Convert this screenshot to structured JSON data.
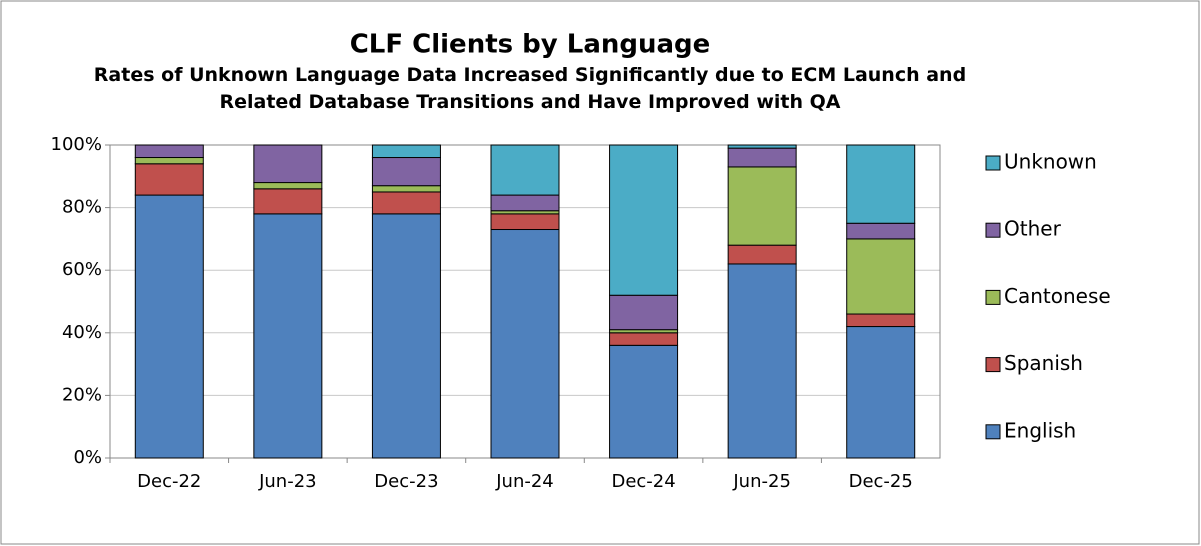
{
  "chart_data": {
    "type": "stacked_bar",
    "title": "CLF Clients by Language",
    "subtitle": "Rates of Unknown Language Data Increased Significantly due to ECM Launch and Related Database Transitions and Have Improved with QA",
    "categories": [
      "Dec-22",
      "Jun-23",
      "Dec-23",
      "Jun-24",
      "Dec-24",
      "Jun-25",
      "Dec-25"
    ],
    "series": [
      {
        "name": "English",
        "color": "#4f81bd",
        "values": [
          84,
          78,
          78,
          73,
          36,
          62,
          42
        ]
      },
      {
        "name": "Spanish",
        "color": "#c0504d",
        "values": [
          10,
          8,
          7,
          5,
          4,
          6,
          4
        ]
      },
      {
        "name": "Cantonese",
        "color": "#9bbb59",
        "values": [
          2,
          2,
          2,
          1,
          1,
          25,
          24
        ]
      },
      {
        "name": "Other",
        "color": "#8064a2",
        "values": [
          4,
          12,
          9,
          5,
          11,
          6,
          5
        ]
      },
      {
        "name": "Unknown",
        "color": "#4bacc6",
        "values": [
          0,
          0,
          4,
          16,
          48,
          1,
          25
        ]
      }
    ],
    "ylim": [
      0,
      100
    ],
    "yticks": [
      {
        "value": 0,
        "label": "0%"
      },
      {
        "value": 20,
        "label": "20%"
      },
      {
        "value": 40,
        "label": "40%"
      },
      {
        "value": 60,
        "label": "60%"
      },
      {
        "value": 80,
        "label": "80%"
      },
      {
        "value": 100,
        "label": "100%"
      }
    ],
    "grid": true,
    "legend": "right"
  }
}
